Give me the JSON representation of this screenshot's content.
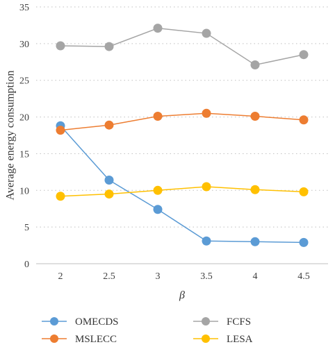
{
  "chart_data": {
    "type": "line",
    "x": [
      "2",
      "2.5",
      "3",
      "3.5",
      "4",
      "4.5"
    ],
    "xlabel": "β",
    "ylabel": "Average energy consumption",
    "ylim": [
      0,
      35
    ],
    "yticks": [
      0,
      5,
      10,
      15,
      20,
      25,
      30,
      35
    ],
    "grid": "horizontal dotted",
    "legend_position": "bottom",
    "series": [
      {
        "name": "OMECDS",
        "color": "#5b9bd5",
        "values": [
          18.8,
          11.4,
          7.4,
          3.1,
          3.0,
          2.9
        ]
      },
      {
        "name": "MSLECC",
        "color": "#ed7d31",
        "values": [
          18.2,
          18.9,
          20.1,
          20.5,
          20.1,
          19.6
        ]
      },
      {
        "name": "FCFS",
        "color": "#a5a5a5",
        "values": [
          29.7,
          29.6,
          32.1,
          31.4,
          27.1,
          28.5
        ]
      },
      {
        "name": "LESA",
        "color": "#ffc000",
        "values": [
          9.2,
          9.5,
          10.0,
          10.5,
          10.1,
          9.8
        ]
      }
    ]
  }
}
